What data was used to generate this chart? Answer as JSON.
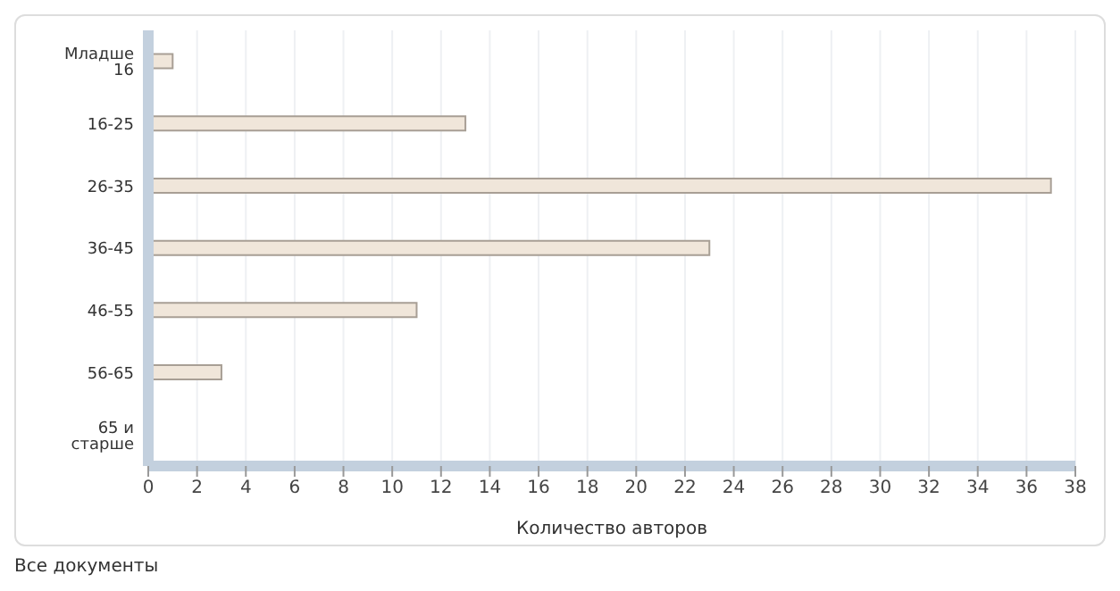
{
  "chart_data": {
    "type": "bar",
    "orientation": "horizontal",
    "xlabel": "Количество авторов",
    "categories": [
      "Младше 16",
      "16-25",
      "26-35",
      "36-45",
      "46-55",
      "56-65",
      "65 и старше"
    ],
    "values": [
      1,
      13,
      37,
      23,
      11,
      3,
      0
    ],
    "color": "#f0e6da",
    "xlim": [
      0,
      38
    ],
    "xticks": [
      0,
      2,
      4,
      6,
      8,
      10,
      12,
      14,
      16,
      18,
      20,
      22,
      24,
      26,
      28,
      30,
      32,
      34,
      36,
      38
    ],
    "grid": "x",
    "annotations": [
      "Все документы"
    ]
  }
}
